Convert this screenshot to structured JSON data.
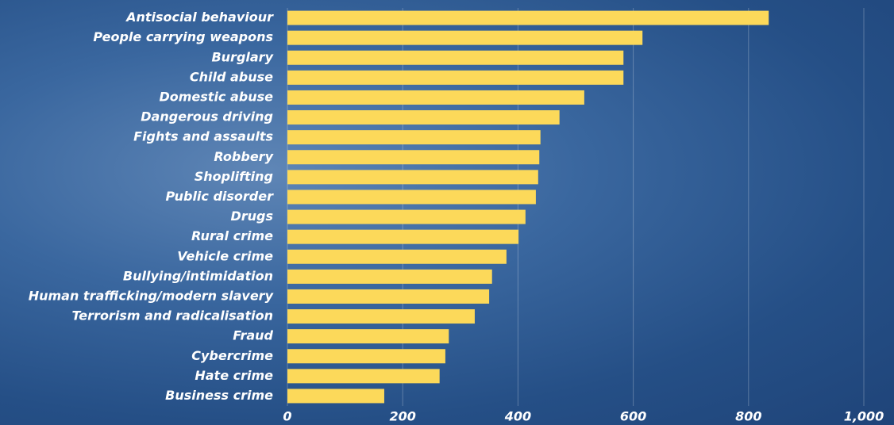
{
  "chart_data": {
    "type": "bar",
    "orientation": "horizontal",
    "categories": [
      "Antisocial behaviour",
      "People carrying weapons",
      "Burglary",
      "Child abuse",
      "Domestic abuse",
      "Dangerous driving",
      "Fights and assaults",
      "Robbery",
      "Shoplifting",
      "Public disorder",
      "Drugs",
      "Rural crime",
      "Vehicle crime",
      "Bullying/intimidation",
      "Human trafficking/modern slavery",
      "Terrorism and radicalisation",
      "Fraud",
      "Cybercrime",
      "Hate crime",
      "Business crime"
    ],
    "values": [
      835,
      616,
      583,
      583,
      515,
      472,
      439,
      437,
      435,
      431,
      413,
      401,
      380,
      355,
      350,
      325,
      280,
      274,
      264,
      168
    ],
    "color": "#fcd95a",
    "xlim": [
      0,
      1000
    ],
    "xticks": [
      0,
      200,
      400,
      600,
      800,
      {
        "value": 1000,
        "label": "1,000"
      }
    ],
    "grid": true
  }
}
